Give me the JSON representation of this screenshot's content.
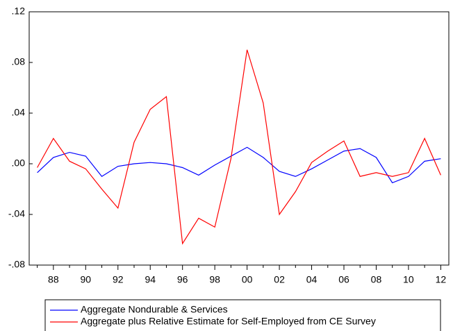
{
  "chart_data": {
    "type": "line",
    "categories": [
      null,
      "88",
      null,
      "90",
      null,
      "92",
      null,
      "94",
      null,
      "96",
      null,
      "98",
      null,
      "00",
      null,
      "02",
      null,
      "04",
      null,
      "06",
      null,
      "08",
      null,
      "10",
      null,
      "12"
    ],
    "series": [
      {
        "name": "Aggregate Nondurable & Services",
        "color": "#0000ff",
        "values": [
          -0.007,
          0.005,
          0.009,
          0.006,
          -0.01,
          -0.002,
          0.0,
          0.001,
          0.0,
          -0.003,
          -0.009,
          -0.001,
          0.006,
          0.013,
          0.005,
          -0.006,
          -0.01,
          -0.004,
          0.003,
          0.01,
          0.012,
          0.005,
          -0.015,
          -0.01,
          0.002,
          0.004
        ]
      },
      {
        "name": "Aggregate plus Relative Estimate for Self-Employed from CE Survey",
        "color": "#ff0000",
        "values": [
          -0.003,
          0.02,
          0.002,
          -0.004,
          -0.02,
          -0.035,
          0.017,
          0.043,
          0.053,
          -0.063,
          -0.043,
          -0.05,
          0.004,
          0.09,
          0.048,
          -0.04,
          -0.022,
          0.001,
          0.01,
          0.018,
          -0.01,
          -0.007,
          -0.01,
          -0.007,
          0.02,
          -0.009
        ]
      }
    ],
    "ylim": [
      -0.08,
      0.12
    ],
    "yticks": [
      {
        "value": -0.08,
        "label": "-.08"
      },
      {
        "value": -0.04,
        "label": "-.04"
      },
      {
        "value": 0,
        "label": ".00"
      },
      {
        "value": 0.04,
        "label": ".04"
      },
      {
        "value": 0.08,
        "label": ".08"
      },
      {
        "value": 0.12,
        "label": ".12"
      }
    ],
    "grid": false
  }
}
